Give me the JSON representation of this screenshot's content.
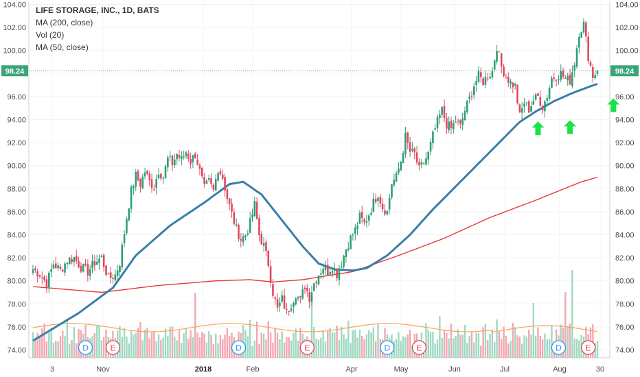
{
  "legend": {
    "title": "LIFE STORAGE, INC., 1D, BATS",
    "ma200": "MA (200, close)",
    "vol": "Vol (20)",
    "ma50": "MA (50, close)"
  },
  "chart_data": {
    "type": "candlestick",
    "symbol": "LIFE STORAGE, INC.",
    "interval": "1D",
    "exchange": "BATS",
    "y_ticks": [
      "74.00",
      "76.00",
      "78.00",
      "80.00",
      "82.00",
      "84.00",
      "86.00",
      "88.00",
      "90.00",
      "92.00",
      "94.00",
      "96.00",
      "98.00",
      "100.00",
      "102.00",
      "104.00"
    ],
    "ylim": [
      73.2,
      104.5
    ],
    "x_labels": [
      "3",
      "Nov",
      "2018",
      "Feb",
      "Apr",
      "May",
      "Jun",
      "Jul",
      "Aug",
      "30"
    ],
    "last_price": "98.24",
    "close_path": [
      [
        0,
        81.0
      ],
      [
        3,
        80.6
      ],
      [
        6,
        79.8
      ],
      [
        9,
        81.5
      ],
      [
        12,
        80.9
      ],
      [
        15,
        81.8
      ],
      [
        18,
        82.0
      ],
      [
        21,
        81.2
      ],
      [
        24,
        80.8
      ],
      [
        27,
        81.6
      ],
      [
        30,
        82.0
      ],
      [
        33,
        80.2
      ],
      [
        36,
        80.5
      ],
      [
        38,
        81.6
      ],
      [
        41,
        85.5
      ],
      [
        43,
        87.8
      ],
      [
        45,
        89.1
      ],
      [
        47,
        88.4
      ],
      [
        49,
        89.5
      ],
      [
        51,
        88.6
      ],
      [
        53,
        88.2
      ],
      [
        55,
        89.6
      ],
      [
        57,
        89.0
      ],
      [
        59,
        90.6
      ],
      [
        61,
        90.2
      ],
      [
        63,
        91.0
      ],
      [
        65,
        90.5
      ],
      [
        67,
        91.2
      ],
      [
        69,
        90.4
      ],
      [
        71,
        91.0
      ],
      [
        73,
        89.5
      ],
      [
        75,
        88.0
      ],
      [
        77,
        88.6
      ],
      [
        79,
        87.8
      ],
      [
        81,
        89.8
      ],
      [
        83,
        89.0
      ],
      [
        85,
        87.2
      ],
      [
        87,
        85.8
      ],
      [
        89,
        84.5
      ],
      [
        91,
        83.6
      ],
      [
        93,
        84.0
      ],
      [
        95,
        85.0
      ],
      [
        97,
        86.6
      ],
      [
        99,
        84.0
      ],
      [
        101,
        83.0
      ],
      [
        103,
        81.5
      ],
      [
        105,
        79.0
      ],
      [
        107,
        77.5
      ],
      [
        109,
        78.4
      ],
      [
        111,
        77.2
      ],
      [
        113,
        78.0
      ],
      [
        115,
        78.9
      ],
      [
        117,
        78.3
      ],
      [
        119,
        79.6
      ],
      [
        121,
        78.6
      ],
      [
        123,
        79.8
      ],
      [
        125,
        80.6
      ],
      [
        127,
        81.2
      ],
      [
        129,
        80.8
      ],
      [
        131,
        81.3
      ],
      [
        133,
        80.6
      ],
      [
        135,
        81.6
      ],
      [
        137,
        82.8
      ],
      [
        139,
        83.7
      ],
      [
        141,
        84.4
      ],
      [
        143,
        85.5
      ],
      [
        145,
        85.0
      ],
      [
        147,
        85.8
      ],
      [
        149,
        86.8
      ],
      [
        151,
        87.6
      ],
      [
        153,
        86.4
      ],
      [
        155,
        86.0
      ],
      [
        157,
        88.5
      ],
      [
        159,
        89.0
      ],
      [
        161,
        90.4
      ],
      [
        163,
        92.5
      ],
      [
        165,
        91.2
      ],
      [
        167,
        91.0
      ],
      [
        169,
        89.6
      ],
      [
        171,
        90.3
      ],
      [
        173,
        91.0
      ],
      [
        175,
        92.6
      ],
      [
        177,
        93.8
      ],
      [
        179,
        94.8
      ],
      [
        181,
        93.6
      ],
      [
        183,
        93.2
      ],
      [
        185,
        93.9
      ],
      [
        187,
        93.4
      ],
      [
        189,
        94.8
      ],
      [
        191,
        95.8
      ],
      [
        193,
        97.0
      ],
      [
        195,
        97.8
      ],
      [
        197,
        97.3
      ],
      [
        199,
        97.8
      ],
      [
        201,
        98.2
      ],
      [
        203,
        100.4
      ],
      [
        205,
        98.6
      ],
      [
        207,
        97.8
      ],
      [
        209,
        97.2
      ],
      [
        211,
        96.9
      ],
      [
        213,
        94.3
      ],
      [
        215,
        95.5
      ],
      [
        217,
        94.9
      ],
      [
        219,
        95.7
      ],
      [
        221,
        96.0
      ],
      [
        223,
        95.1
      ],
      [
        225,
        96.1
      ],
      [
        227,
        97.6
      ],
      [
        229,
        97.8
      ],
      [
        231,
        98.0
      ],
      [
        233,
        97.5
      ],
      [
        235,
        97.4
      ],
      [
        237,
        99.0
      ],
      [
        239,
        101.6
      ],
      [
        241,
        102.3
      ],
      [
        243,
        99.5
      ],
      [
        245,
        97.8
      ],
      [
        247,
        98.24
      ]
    ],
    "ma50_path": [
      [
        0,
        74.8
      ],
      [
        20,
        77.2
      ],
      [
        35,
        79.4
      ],
      [
        45,
        82.2
      ],
      [
        60,
        84.8
      ],
      [
        75,
        86.8
      ],
      [
        86,
        88.4
      ],
      [
        92,
        88.6
      ],
      [
        100,
        87.5
      ],
      [
        110,
        85.0
      ],
      [
        118,
        83.0
      ],
      [
        125,
        81.5
      ],
      [
        132,
        81.0
      ],
      [
        140,
        80.9
      ],
      [
        146,
        81.1
      ],
      [
        155,
        82.2
      ],
      [
        165,
        84.0
      ],
      [
        175,
        86.2
      ],
      [
        185,
        88.2
      ],
      [
        195,
        90.2
      ],
      [
        205,
        92.2
      ],
      [
        213,
        93.8
      ],
      [
        220,
        94.7
      ],
      [
        228,
        95.6
      ],
      [
        236,
        96.3
      ],
      [
        244,
        96.9
      ],
      [
        247,
        97.1
      ]
    ],
    "ma200_path": [
      [
        0,
        79.5
      ],
      [
        30,
        79.0
      ],
      [
        55,
        79.6
      ],
      [
        80,
        80.0
      ],
      [
        95,
        80.1
      ],
      [
        105,
        79.9
      ],
      [
        118,
        80.1
      ],
      [
        140,
        80.8
      ],
      [
        160,
        82.2
      ],
      [
        180,
        83.7
      ],
      [
        200,
        85.5
      ],
      [
        220,
        87.0
      ],
      [
        240,
        88.6
      ],
      [
        247,
        89.0
      ]
    ],
    "volume_heights": [
      34,
      28,
      44,
      31,
      36,
      41,
      26,
      31,
      38,
      24,
      33,
      29,
      41,
      36,
      31,
      46,
      24,
      29,
      51,
      27,
      35,
      39,
      31,
      44,
      36,
      28,
      41,
      33,
      38,
      46,
      29,
      34,
      41,
      30,
      37,
      43,
      25,
      36,
      47,
      31,
      42,
      34,
      28,
      51,
      37,
      30,
      39,
      43,
      27,
      35,
      46,
      38,
      31,
      44,
      29,
      41,
      36,
      33,
      48,
      26,
      39,
      44,
      31,
      35,
      42,
      28,
      37,
      49,
      33,
      41,
      30,
      45,
      36,
      28,
      39,
      47,
      32,
      40,
      35,
      29
    ],
    "dividend_markers": [
      [
        "D",
        23
      ],
      [
        "D",
        90
      ],
      [
        "D",
        155
      ],
      [
        "D",
        230
      ]
    ],
    "earnings_markers": [
      [
        "E",
        35
      ],
      [
        "E",
        120
      ],
      [
        "E",
        169
      ],
      [
        "E",
        243
      ]
    ],
    "arrows": [
      [
        221,
        94.5
      ],
      [
        235,
        94.6
      ],
      [
        254,
        96.5
      ]
    ]
  }
}
